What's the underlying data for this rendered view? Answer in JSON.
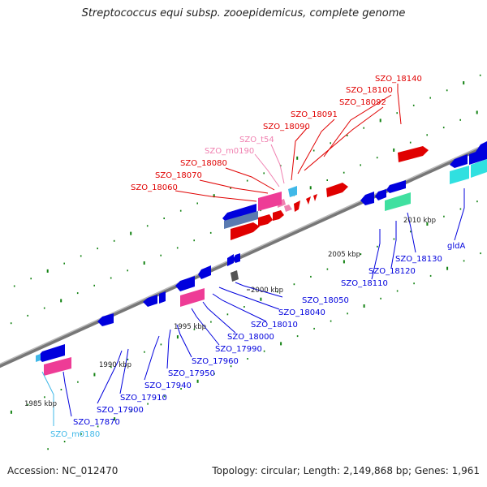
{
  "title": "Streptococcus equi subsp. zooepidemicus, complete genome",
  "footer": {
    "accession": "Accession: NC_012470",
    "topology": "Topology: circular; Length: 2,149,868 bp; Genes: 1,961"
  },
  "colors": {
    "backbone": "#8a8a8a",
    "cds_forward": "#e00000",
    "cds_reverse": "#0000dd",
    "rna_forward": "#f080b0",
    "rna_reverse": "#40b8e8",
    "pink_gene": "#ee3c96",
    "cyan_gene": "#30e0e0",
    "tick": "#128212"
  },
  "scale_labels": [
    "1985 kbp",
    "1990 kbp",
    "1995 kbp",
    "2000 kbp",
    "2005 kbp",
    "2010 kbp"
  ],
  "gene_labels_above": [
    {
      "name": "SZO_18140",
      "color": "#e00000"
    },
    {
      "name": "SZO_18100",
      "color": "#e00000"
    },
    {
      "name": "SZO_18092",
      "color": "#e00000"
    },
    {
      "name": "SZO_18091",
      "color": "#e00000"
    },
    {
      "name": "SZO_18090",
      "color": "#e00000"
    },
    {
      "name": "SZO_t54",
      "color": "#f080b0"
    },
    {
      "name": "SZO_m0190",
      "color": "#f080b0"
    },
    {
      "name": "SZO_18080",
      "color": "#e00000"
    },
    {
      "name": "SZO_18070",
      "color": "#e00000"
    },
    {
      "name": "SZO_18060",
      "color": "#e00000"
    }
  ],
  "gene_labels_below": [
    {
      "name": "SZO_m0180",
      "color": "#40b8e8"
    },
    {
      "name": "SZO_17870",
      "color": "#0000dd"
    },
    {
      "name": "SZO_17900",
      "color": "#0000dd"
    },
    {
      "name": "SZO_17910",
      "color": "#0000dd"
    },
    {
      "name": "SZO_17940",
      "color": "#0000dd"
    },
    {
      "name": "SZO_17950",
      "color": "#0000dd"
    },
    {
      "name": "SZO_17960",
      "color": "#0000dd"
    },
    {
      "name": "SZO_17990",
      "color": "#0000dd"
    },
    {
      "name": "SZO_18000",
      "color": "#0000dd"
    },
    {
      "name": "SZO_18010",
      "color": "#0000dd"
    },
    {
      "name": "SZO_18040",
      "color": "#0000dd"
    },
    {
      "name": "SZO_18050",
      "color": "#0000dd"
    },
    {
      "name": "SZO_18110",
      "color": "#0000dd"
    },
    {
      "name": "SZO_18120",
      "color": "#0000dd"
    },
    {
      "name": "SZO_18130",
      "color": "#0000dd"
    },
    {
      "name": "gldA",
      "color": "#0000dd"
    }
  ]
}
